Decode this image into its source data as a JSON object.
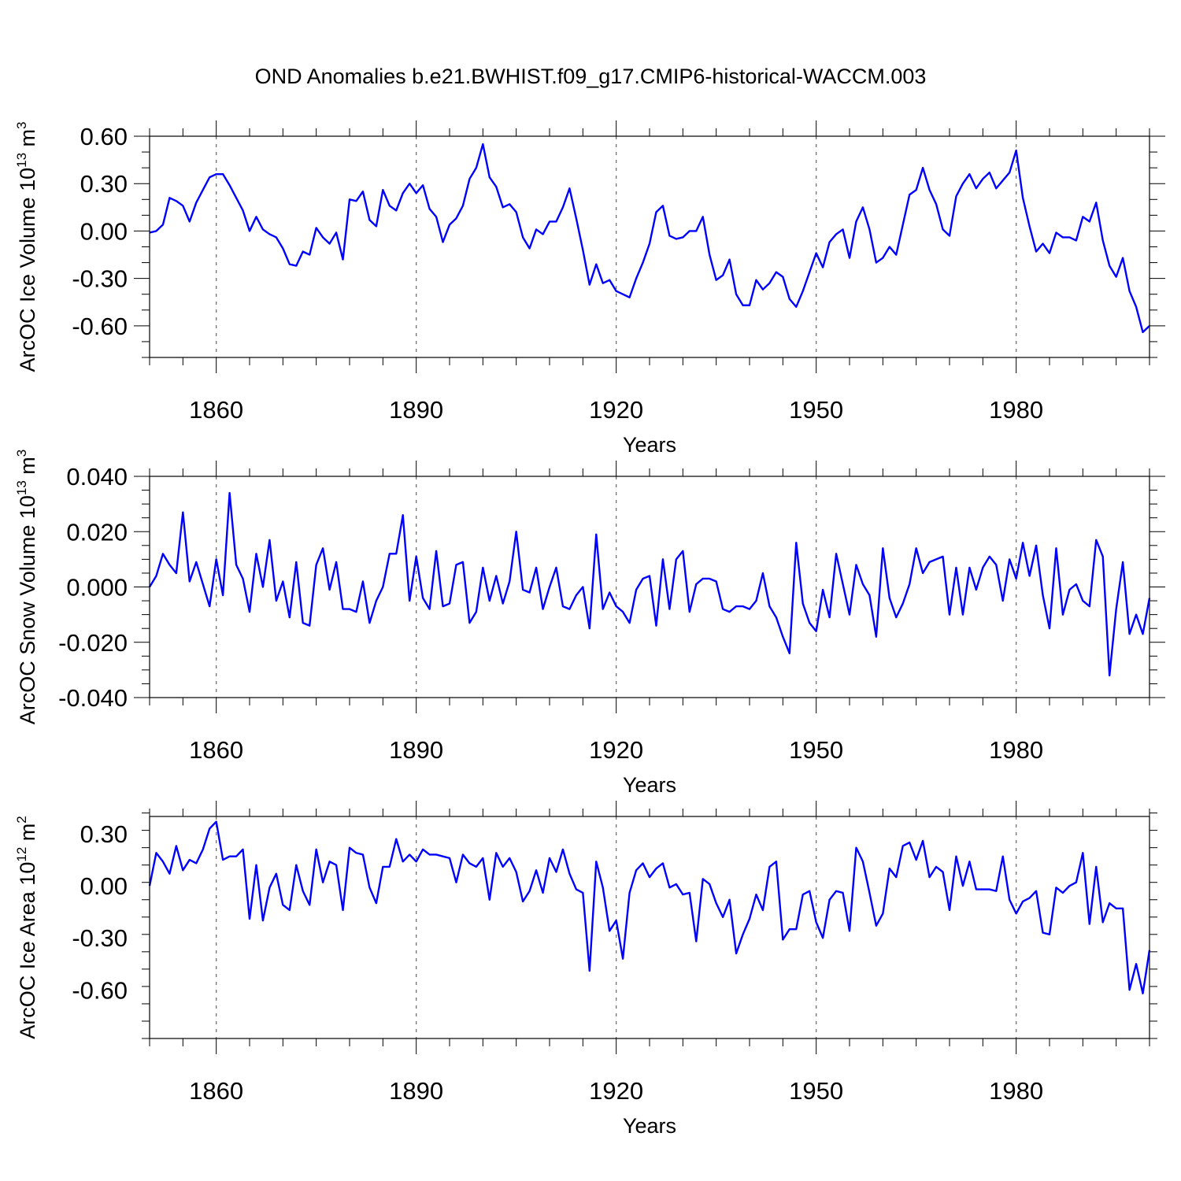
{
  "title": "OND Anomalies b.e21.BWHIST.f09_g17.CMIP6-historical-WACCM.003",
  "line_color": "#0000ff",
  "chart_data": [
    {
      "type": "line",
      "name": "ice-volume",
      "ylabel": "ArcOC Ice Volume",
      "ylabel_unit_base": "10",
      "ylabel_unit_exp": "13",
      "ylabel_unit_tail": "m",
      "ylabel_unit_tail_exp": "3",
      "xlabel": "Years",
      "xlim": [
        1850,
        2000
      ],
      "ylim": [
        -0.8,
        0.6
      ],
      "xticks": [
        1860,
        1890,
        1920,
        1950,
        1980
      ],
      "xtick_labels": [
        "1860",
        "1890",
        "1920",
        "1950",
        "1980"
      ],
      "yticks": [
        0.6,
        0.3,
        0.0,
        -0.3,
        -0.6
      ],
      "ytick_labels": [
        "0.60",
        "0.30",
        "0.00",
        "-0.30",
        "-0.60"
      ],
      "x_start": 1850,
      "values": [
        -0.01,
        0.0,
        0.04,
        0.21,
        0.19,
        0.16,
        0.06,
        0.18,
        0.26,
        0.34,
        0.36,
        0.36,
        0.29,
        0.21,
        0.13,
        0.0,
        0.09,
        0.01,
        -0.02,
        -0.04,
        -0.11,
        -0.21,
        -0.22,
        -0.13,
        -0.15,
        0.02,
        -0.04,
        -0.08,
        -0.01,
        -0.18,
        0.2,
        0.19,
        0.25,
        0.07,
        0.03,
        0.26,
        0.16,
        0.13,
        0.24,
        0.3,
        0.24,
        0.29,
        0.14,
        0.09,
        -0.07,
        0.04,
        0.08,
        0.16,
        0.33,
        0.4,
        0.55,
        0.34,
        0.28,
        0.15,
        0.17,
        0.12,
        -0.04,
        -0.11,
        0.01,
        -0.02,
        0.06,
        0.06,
        0.15,
        0.27,
        0.08,
        -0.12,
        -0.34,
        -0.21,
        -0.33,
        -0.31,
        -0.38,
        -0.4,
        -0.42,
        -0.3,
        -0.2,
        -0.08,
        0.12,
        0.16,
        -0.03,
        -0.05,
        -0.04,
        0.0,
        0.0,
        0.09,
        -0.15,
        -0.31,
        -0.28,
        -0.18,
        -0.4,
        -0.47,
        -0.47,
        -0.31,
        -0.37,
        -0.33,
        -0.26,
        -0.29,
        -0.43,
        -0.48,
        -0.38,
        -0.26,
        -0.14,
        -0.23,
        -0.07,
        -0.02,
        0.01,
        -0.17,
        0.06,
        0.15,
        0.01,
        -0.2,
        -0.17,
        -0.1,
        -0.15,
        0.04,
        0.23,
        0.26,
        0.4,
        0.26,
        0.17,
        0.01,
        -0.03,
        0.22,
        0.3,
        0.36,
        0.27,
        0.33,
        0.37,
        0.27,
        0.32,
        0.37,
        0.51,
        0.21,
        0.03,
        -0.13,
        -0.08,
        -0.14,
        -0.01,
        -0.04,
        -0.04,
        -0.06,
        0.09,
        0.06,
        0.18,
        -0.06,
        -0.22,
        -0.29,
        -0.17,
        -0.38,
        -0.48,
        -0.64,
        -0.6
      ]
    },
    {
      "type": "line",
      "name": "snow-volume",
      "ylabel": "ArcOC Snow Volume",
      "ylabel_unit_base": "10",
      "ylabel_unit_exp": "13",
      "ylabel_unit_tail": "m",
      "ylabel_unit_tail_exp": "3",
      "xlabel": "Years",
      "xlim": [
        1850,
        2000
      ],
      "ylim": [
        -0.04,
        0.04
      ],
      "xticks": [
        1860,
        1890,
        1920,
        1950,
        1980
      ],
      "xtick_labels": [
        "1860",
        "1890",
        "1920",
        "1950",
        "1980"
      ],
      "yticks": [
        0.04,
        0.02,
        0.0,
        -0.02,
        -0.04
      ],
      "ytick_labels": [
        "0.040",
        "0.020",
        "0.000",
        "-0.020",
        "-0.040"
      ],
      "x_start": 1850,
      "values": [
        0.0,
        0.004,
        0.012,
        0.008,
        0.005,
        0.027,
        0.002,
        0.009,
        0.001,
        -0.007,
        0.01,
        -0.003,
        0.034,
        0.008,
        0.003,
        -0.009,
        0.012,
        0.0,
        0.017,
        -0.005,
        0.002,
        -0.011,
        0.009,
        -0.013,
        -0.014,
        0.008,
        0.014,
        -0.001,
        0.009,
        -0.008,
        -0.008,
        -0.009,
        0.002,
        -0.013,
        -0.005,
        0.0,
        0.012,
        0.012,
        0.026,
        -0.005,
        0.011,
        -0.004,
        -0.008,
        0.013,
        -0.007,
        -0.006,
        0.008,
        0.009,
        -0.013,
        -0.009,
        0.007,
        -0.005,
        0.004,
        -0.006,
        0.002,
        0.02,
        -0.001,
        -0.002,
        0.007,
        -0.008,
        0.0,
        0.007,
        -0.007,
        -0.008,
        -0.003,
        0.0,
        -0.015,
        0.019,
        -0.008,
        -0.002,
        -0.007,
        -0.009,
        -0.013,
        -0.001,
        0.003,
        0.004,
        -0.014,
        0.01,
        -0.008,
        0.01,
        0.013,
        -0.009,
        0.001,
        0.003,
        0.003,
        0.002,
        -0.008,
        -0.009,
        -0.007,
        -0.007,
        -0.008,
        -0.005,
        0.005,
        -0.007,
        -0.011,
        -0.018,
        -0.024,
        0.016,
        -0.006,
        -0.013,
        -0.016,
        -0.001,
        -0.011,
        0.012,
        0.001,
        -0.01,
        0.008,
        0.001,
        -0.003,
        -0.018,
        0.014,
        -0.004,
        -0.011,
        -0.006,
        0.001,
        0.014,
        0.005,
        0.009,
        0.01,
        0.011,
        -0.01,
        0.007,
        -0.01,
        0.007,
        -0.001,
        0.007,
        0.011,
        0.008,
        -0.005,
        0.01,
        0.003,
        0.016,
        0.004,
        0.015,
        -0.003,
        -0.015,
        0.014,
        -0.01,
        -0.001,
        0.001,
        -0.005,
        -0.007,
        0.017,
        0.011,
        -0.032,
        -0.008,
        0.009,
        -0.017,
        -0.01,
        -0.017,
        -0.004
      ]
    },
    {
      "type": "line",
      "name": "ice-area",
      "ylabel": "ArcOC Ice Area",
      "ylabel_unit_base": "10",
      "ylabel_unit_exp": "12",
      "ylabel_unit_tail": "m",
      "ylabel_unit_tail_exp": "2",
      "xlabel": "Years",
      "xlim": [
        1850,
        2000
      ],
      "ylim": [
        -0.88,
        0.4
      ],
      "xticks": [
        1860,
        1890,
        1920,
        1950,
        1980
      ],
      "xtick_labels": [
        "1860",
        "1890",
        "1920",
        "1950",
        "1980"
      ],
      "yticks": [
        0.3,
        0.0,
        -0.3,
        -0.6
      ],
      "ytick_labels": [
        "0.30",
        "0.00",
        "-0.30",
        "-0.60"
      ],
      "x_start": 1850,
      "values": [
        0.0,
        0.19,
        0.14,
        0.07,
        0.23,
        0.09,
        0.15,
        0.13,
        0.21,
        0.33,
        0.37,
        0.15,
        0.17,
        0.17,
        0.21,
        -0.19,
        0.12,
        -0.2,
        -0.01,
        0.07,
        -0.11,
        -0.14,
        0.12,
        -0.03,
        -0.11,
        0.21,
        0.02,
        0.14,
        0.12,
        -0.14,
        0.22,
        0.19,
        0.18,
        -0.01,
        -0.1,
        0.11,
        0.11,
        0.27,
        0.14,
        0.18,
        0.14,
        0.21,
        0.18,
        0.18,
        0.17,
        0.16,
        0.02,
        0.18,
        0.13,
        0.11,
        0.16,
        -0.08,
        0.19,
        0.11,
        0.16,
        0.08,
        -0.09,
        -0.03,
        0.09,
        -0.04,
        0.16,
        0.08,
        0.21,
        0.07,
        -0.02,
        -0.04,
        -0.49,
        0.14,
        -0.01,
        -0.26,
        -0.2,
        -0.42,
        -0.04,
        0.09,
        0.13,
        0.05,
        0.1,
        0.13,
        -0.01,
        0.01,
        -0.05,
        -0.04,
        -0.32,
        0.04,
        0.01,
        -0.1,
        -0.18,
        -0.08,
        -0.39,
        -0.28,
        -0.19,
        -0.05,
        -0.14,
        0.11,
        0.14,
        -0.31,
        -0.25,
        -0.25,
        -0.05,
        -0.03,
        -0.21,
        -0.3,
        -0.08,
        -0.03,
        -0.04,
        -0.26,
        0.22,
        0.14,
        -0.04,
        -0.23,
        -0.16,
        0.1,
        0.05,
        0.23,
        0.25,
        0.15,
        0.26,
        0.05,
        0.11,
        0.08,
        -0.14,
        0.17,
        0.0,
        0.14,
        -0.02,
        -0.02,
        -0.02,
        -0.03,
        0.17,
        -0.08,
        -0.16,
        -0.09,
        -0.07,
        -0.03,
        -0.27,
        -0.28,
        -0.01,
        -0.04,
        0.0,
        0.02,
        0.19,
        -0.22,
        0.11,
        -0.21,
        -0.1,
        -0.13,
        -0.13,
        -0.6,
        -0.45,
        -0.62,
        -0.37
      ]
    }
  ]
}
